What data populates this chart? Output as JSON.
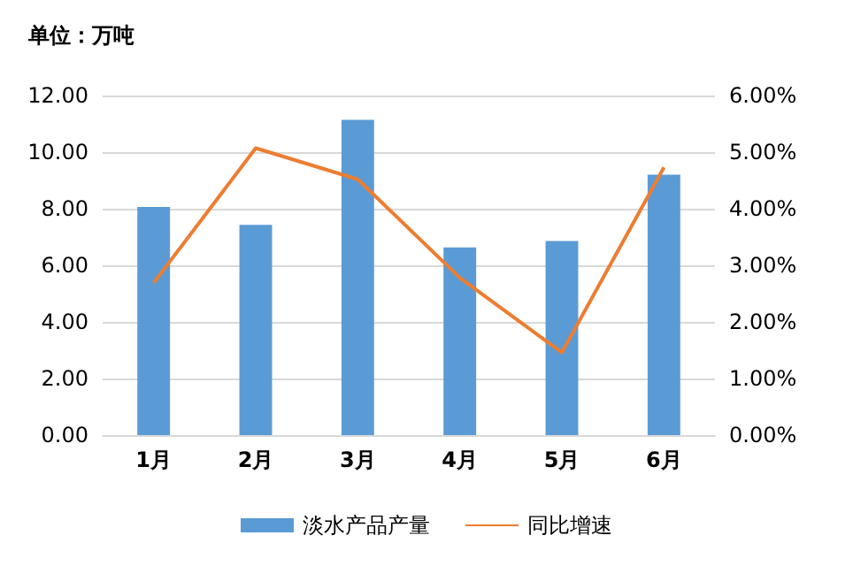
{
  "chart_data": {
    "type": "bar",
    "annotations": [
      "单位：万吨"
    ],
    "categories": [
      "1月",
      "2月",
      "3月",
      "4月",
      "5月",
      "6月"
    ],
    "series": [
      {
        "name": "淡水产品产量",
        "color": "#5b9bd5",
        "values": [
          8.06,
          7.43,
          11.14,
          6.63,
          6.86,
          9.2
        ]
      },
      {
        "name": "同比增速",
        "type": "line",
        "axis": "y2",
        "color": "#ed7d31",
        "values": [
          2.69,
          5.07,
          4.52,
          2.78,
          1.46,
          4.73
        ]
      }
    ],
    "ylim": [
      0,
      12
    ],
    "yticks": [
      {
        "value": 0,
        "label": "0.00"
      },
      {
        "value": 2,
        "label": "2.00"
      },
      {
        "value": 4,
        "label": "4.00"
      },
      {
        "value": 6,
        "label": "6.00"
      },
      {
        "value": 8,
        "label": "8.00"
      },
      {
        "value": 10,
        "label": "10.00"
      },
      {
        "value": 12,
        "label": "12.00"
      }
    ],
    "y2lim": [
      0,
      6
    ],
    "y2ticks": [
      {
        "value": 0,
        "label": "0.00%"
      },
      {
        "value": 1,
        "label": "1.00%"
      },
      {
        "value": 2,
        "label": "2.00%"
      },
      {
        "value": 3,
        "label": "3.00%"
      },
      {
        "value": 4,
        "label": "4.00%"
      },
      {
        "value": 5,
        "label": "5.00%"
      },
      {
        "value": 6,
        "label": "6.00%"
      }
    ],
    "grid": "y",
    "legend": "bottom",
    "marker": "none"
  }
}
